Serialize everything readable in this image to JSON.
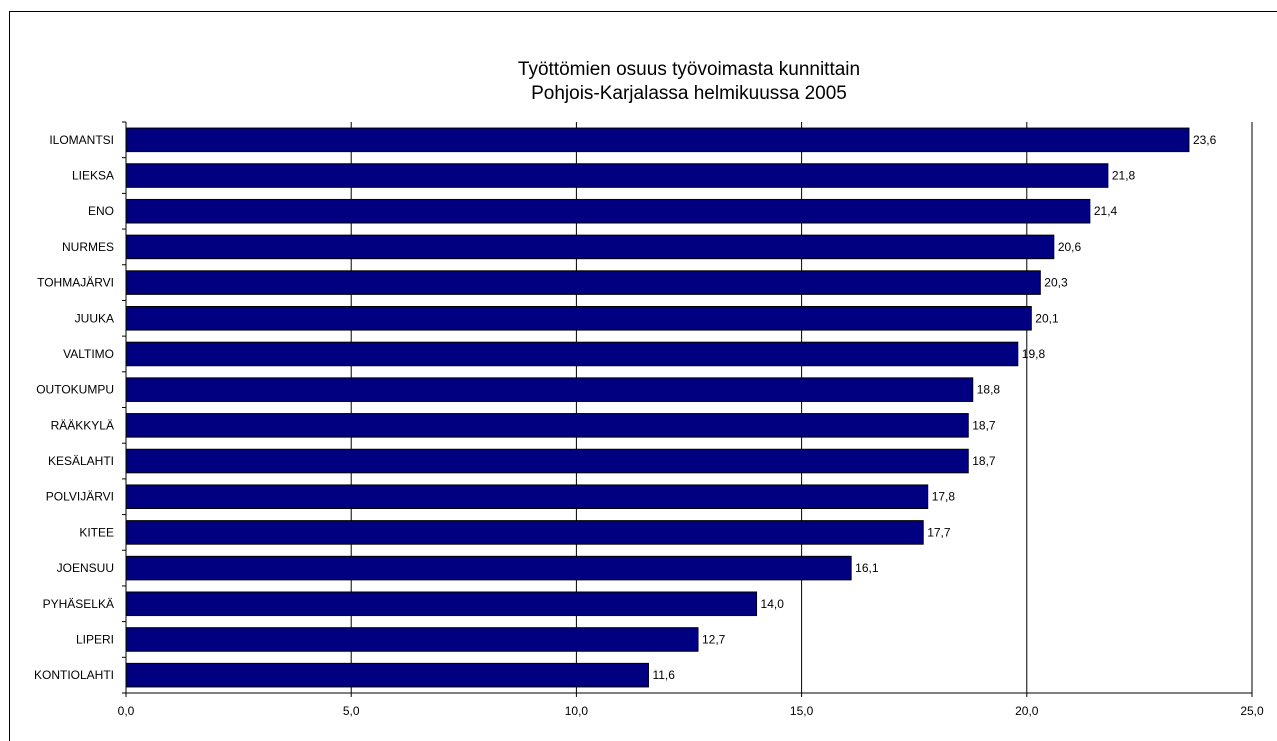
{
  "chart_data": {
    "type": "bar",
    "orientation": "horizontal",
    "title": [
      "Työttömien osuus työvoimasta kunnittain",
      "Pohjois-Karjalassa helmikuussa 2005"
    ],
    "categories": [
      "ILOMANTSI",
      "LIEKSA",
      "ENO",
      "NURMES",
      "TOHMAJÄRVI",
      "JUUKA",
      "VALTIMO",
      "OUTOKUMPU",
      "RÄÄKKYLÄ",
      "KESÄLAHTI",
      "POLVIJÄRVI",
      "KITEE",
      "JOENSUU",
      "PYHÄSELKÄ",
      "LIPERI",
      "KONTIOLAHTI"
    ],
    "values": [
      23.6,
      21.8,
      21.4,
      20.6,
      20.3,
      20.1,
      19.8,
      18.8,
      18.7,
      18.7,
      17.8,
      17.7,
      16.1,
      14.0,
      12.7,
      11.6
    ],
    "value_labels": [
      "23,6",
      "21,8",
      "21,4",
      "20,6",
      "20,3",
      "20,1",
      "19,8",
      "18,8",
      "18,7",
      "18,7",
      "17,8",
      "17,7",
      "16,1",
      "14,0",
      "12,7",
      "11,6"
    ],
    "xlim": [
      0,
      25
    ],
    "x_ticks": [
      0,
      5,
      10,
      15,
      20,
      25
    ],
    "x_tick_labels": [
      "0,0",
      "5,0",
      "10,0",
      "15,0",
      "20,0",
      "25,0"
    ],
    "grid": true,
    "legend": "none",
    "xlabel": "",
    "ylabel": "",
    "bar_color": "#000080",
    "bar_edge_color": "#000000"
  }
}
